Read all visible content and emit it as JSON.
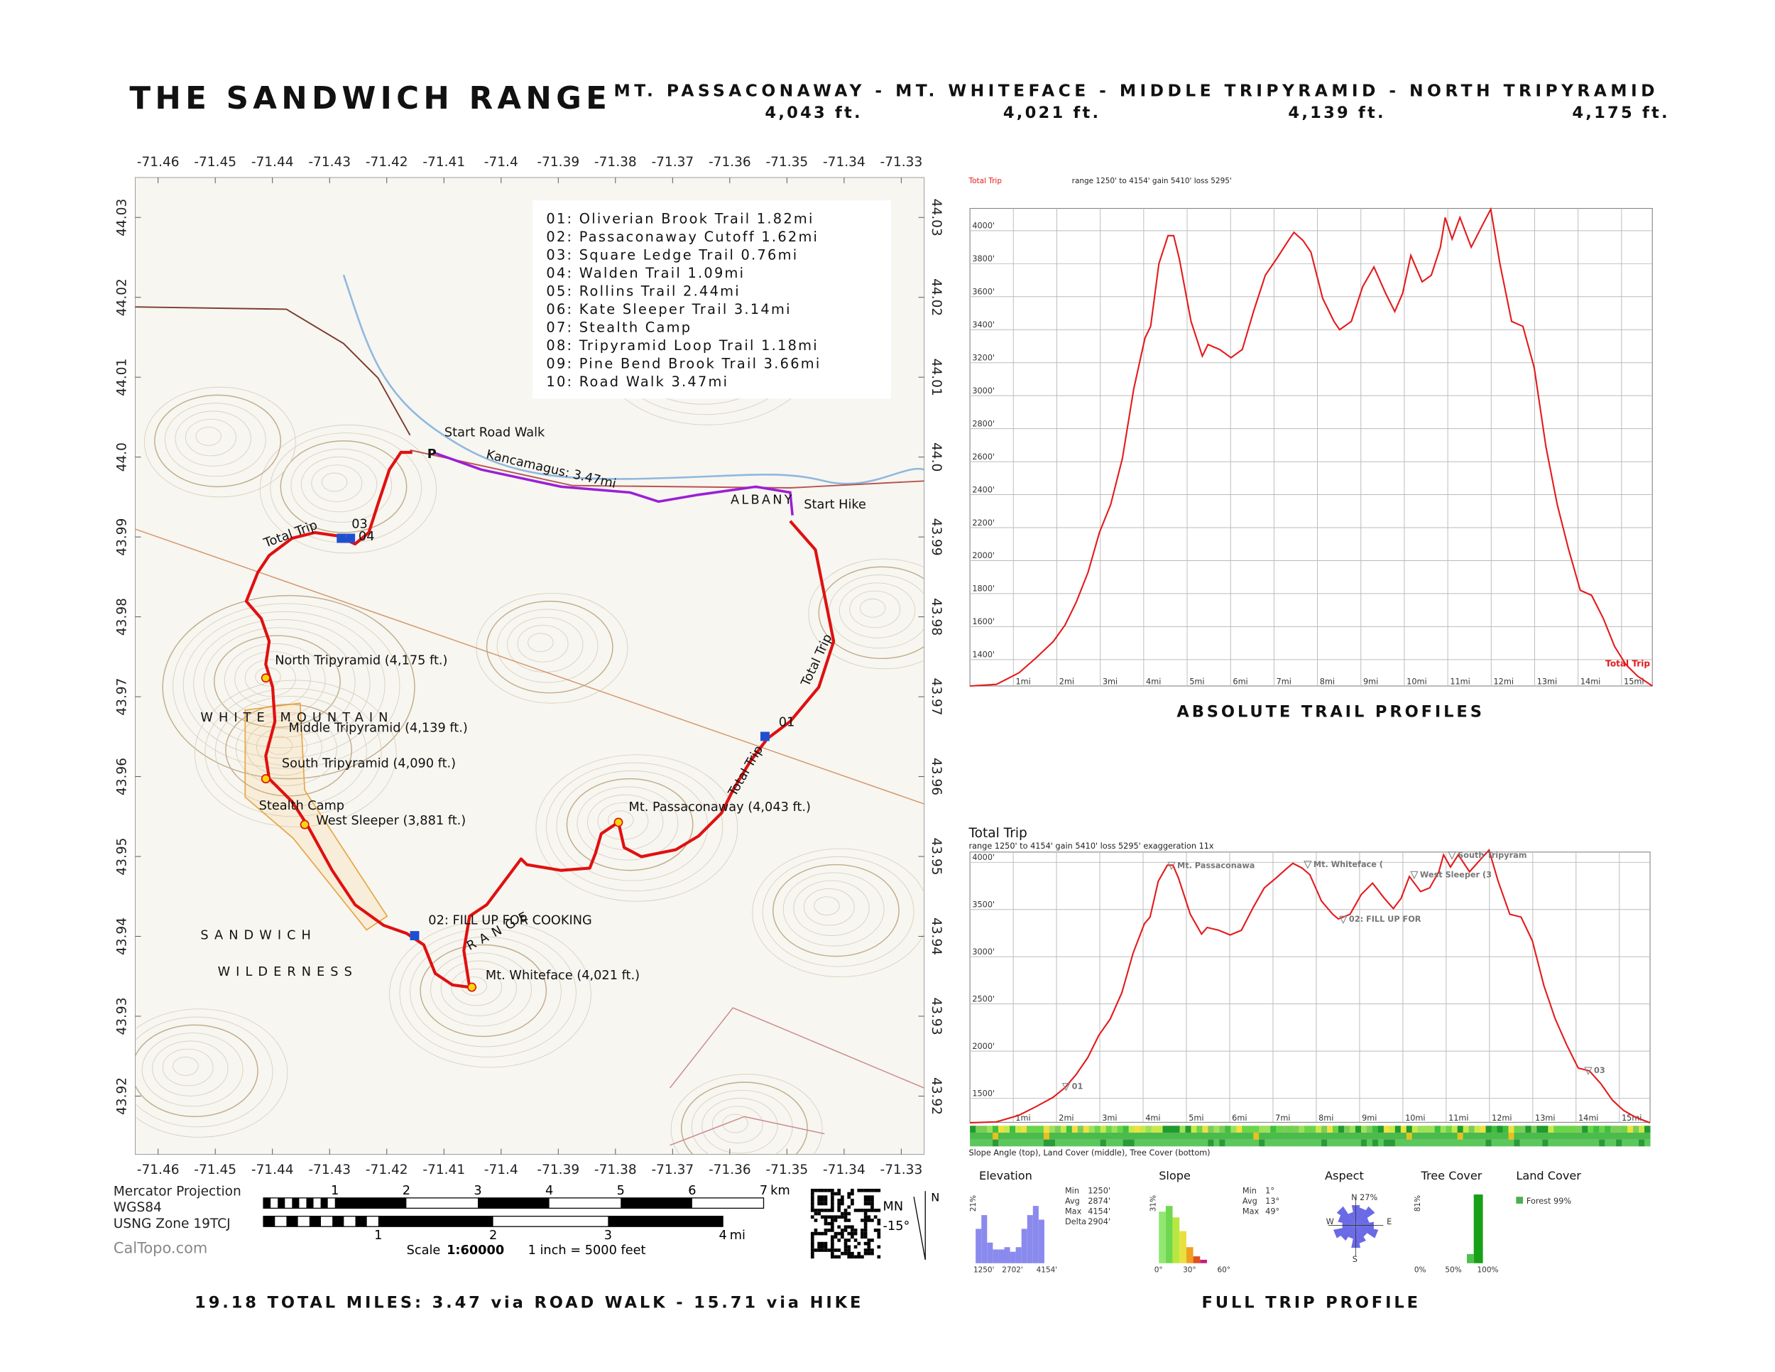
{
  "header": {
    "title": "THE SANDWICH RANGE",
    "peaks": "MT. PASSACONAWAY - MT. WHITEFACE - MIDDLE TRIPYRAMID - NORTH TRIPYRAMID",
    "elevations": [
      "4,043 ft.",
      "4,021 ft.",
      "4,139 ft.",
      "4,175 ft."
    ]
  },
  "map": {
    "lonlim": [
      -71.464,
      -71.326
    ],
    "latlim": [
      44.035,
      43.9127
    ],
    "lonticks": [
      -71.46,
      -71.45,
      -71.44,
      -71.43,
      -71.42,
      -71.41,
      -71.4,
      -71.39,
      -71.38,
      -71.37,
      -71.36,
      -71.35,
      -71.34,
      -71.33
    ],
    "latticks": [
      44.03,
      44.02,
      44.01,
      {
        "value": 44,
        "label": "44.0"
      },
      43.99,
      43.98,
      43.97,
      43.96,
      43.95,
      43.94,
      43.93,
      43.92
    ],
    "legend": [
      "01: Oliverian Brook Trail 1.82mi",
      "02: Passaconaway Cutoff 1.62mi",
      "03: Square Ledge Trail 0.76mi",
      "04: Walden Trail 1.09mi",
      "05: Rollins Trail 2.44mi",
      "06: Kate Sleeper Trail 3.14mi",
      "07: Stealth Camp",
      "08: Tripyramid Loop Trail 1.18mi",
      "09: Pine Bend Brook Trail 3.66mi",
      "10: Road Walk 3.47mi"
    ],
    "labels": {
      "start_road_walk": "Start Road Walk",
      "parking": "P",
      "kancamagus": "Kancamagus: 3.47mi",
      "start_hike": "Start Hike",
      "total_trip": "Total Trip",
      "north": "North Tripyramid (4,175 ft.)",
      "middle": "Middle Tripyramid (4,139 ft.)",
      "south": "South Tripyramid (4,090 ft.)",
      "stealth": "Stealth Camp",
      "west_sleeper": "West Sleeper (3,881 ft.)",
      "passaconaway": "Mt. Passaconaway (4,043 ft.)",
      "fill_up": "02: FILL UP FOR COOKING",
      "whiteface": "Mt. Whiteface (4,021 ft.)",
      "wp01": "01",
      "wp03": "03",
      "wp04": "04",
      "albany": "ALBANY",
      "white_mountain": "WHITE MOUNTAIN",
      "sandwich": "SANDWICH",
      "wilderness": "WILDERNESS",
      "range": "RANGE"
    },
    "projection": [
      "Mercator Projection",
      "WGS84",
      "USNG Zone 19TCJ"
    ],
    "credit": "CalTopo.com",
    "scale": {
      "km": [
        1,
        2,
        3,
        4,
        5,
        6,
        7
      ],
      "km_unit": "km",
      "mi": [
        1,
        2,
        3,
        4
      ],
      "mi_unit": "mi",
      "label": "Scale",
      "ratio": "1:60000",
      "inch": "1 inch = 5000 feet"
    },
    "north": {
      "mn": "MN",
      "declination": "-15°",
      "n": "N"
    }
  },
  "chart_data": [
    {
      "type": "line",
      "title": "Total Trip",
      "subtitle": "range 1250' to 4154'  gain 5410'  loss 5295'",
      "x": [
        0,
        0.61,
        1.13,
        1.52,
        1.92,
        2.19,
        2.45,
        2.72,
        2.98,
        3.24,
        3.51,
        3.77,
        4.03,
        4.16,
        4.35,
        4.56,
        4.69,
        4.82,
        5.09,
        5.35,
        5.48,
        5.75,
        6.01,
        6.27,
        6.54,
        6.8,
        7.06,
        7.33,
        7.46,
        7.67,
        7.85,
        8.12,
        8.38,
        8.51,
        8.78,
        9.04,
        9.3,
        9.57,
        9.78,
        9.96,
        10.15,
        10.41,
        10.62,
        10.83,
        10.94,
        11.1,
        11.28,
        11.54,
        11.81,
        11.99,
        12.2,
        12.47,
        12.73,
        12.99,
        13.26,
        13.52,
        13.78,
        14.05,
        14.31,
        14.58,
        14.84,
        15.1,
        15.37,
        15.71
      ],
      "series": [
        {
          "name": "Total Trip",
          "color": "#e41a1c",
          "values": [
            1240,
            1250,
            1320,
            1410,
            1510,
            1610,
            1750,
            1930,
            2170,
            2340,
            2620,
            3040,
            3350,
            3420,
            3800,
            3970,
            3970,
            3830,
            3450,
            3240,
            3310,
            3280,
            3230,
            3280,
            3520,
            3730,
            3830,
            3940,
            3990,
            3940,
            3870,
            3590,
            3450,
            3400,
            3450,
            3660,
            3780,
            3620,
            3510,
            3620,
            3850,
            3690,
            3730,
            3900,
            4080,
            3950,
            4080,
            3900,
            4040,
            4130,
            3800,
            3450,
            3420,
            3170,
            2690,
            2340,
            2070,
            1820,
            1790,
            1650,
            1480,
            1370,
            1300,
            1240
          ]
        }
      ],
      "xlim": [
        0,
        15.71
      ],
      "ylim": [
        1240,
        4135
      ],
      "xticks": [
        {
          "value": 1,
          "label": "1mi"
        },
        {
          "value": 2,
          "label": "2mi"
        },
        {
          "value": 3,
          "label": "3mi"
        },
        {
          "value": 4,
          "label": "4mi"
        },
        {
          "value": 5,
          "label": "5mi"
        },
        {
          "value": 6,
          "label": "6mi"
        },
        {
          "value": 7,
          "label": "7mi"
        },
        {
          "value": 8,
          "label": "8mi"
        },
        {
          "value": 9,
          "label": "9mi"
        },
        {
          "value": 10,
          "label": "10mi"
        },
        {
          "value": 11,
          "label": "11mi"
        },
        {
          "value": 12,
          "label": "12mi"
        },
        {
          "value": 13,
          "label": "13mi"
        },
        {
          "value": 14,
          "label": "14mi"
        },
        {
          "value": 15,
          "label": "15mi"
        }
      ],
      "yticks": [
        {
          "value": 1400,
          "label": "1400'"
        },
        {
          "value": 1600,
          "label": "1600'"
        },
        {
          "value": 1800,
          "label": "1800'"
        },
        {
          "value": 2000,
          "label": "2000'"
        },
        {
          "value": 2200,
          "label": "2200'"
        },
        {
          "value": 2400,
          "label": "2400'"
        },
        {
          "value": 2600,
          "label": "2600'"
        },
        {
          "value": 2800,
          "label": "2800'"
        },
        {
          "value": 3000,
          "label": "3000'"
        },
        {
          "value": 3200,
          "label": "3200'"
        },
        {
          "value": 3400,
          "label": "3400'"
        },
        {
          "value": 3600,
          "label": "3600'"
        },
        {
          "value": 3800,
          "label": "3800'"
        },
        {
          "value": 4000,
          "label": "4000'"
        }
      ],
      "grid": true,
      "legend": "lower right",
      "caption": "ABSOLUTE TRAIL PROFILES"
    },
    {
      "type": "line",
      "title": "Total Trip",
      "subtitle": "range 1250' to 4154'  gain 5410'  loss 5295'  exaggeration 11x",
      "x": [
        0,
        0.61,
        1.13,
        1.52,
        1.92,
        2.19,
        2.45,
        2.72,
        2.98,
        3.24,
        3.51,
        3.77,
        4.03,
        4.16,
        4.35,
        4.56,
        4.69,
        4.82,
        5.09,
        5.35,
        5.48,
        5.75,
        6.01,
        6.27,
        6.54,
        6.8,
        7.06,
        7.33,
        7.46,
        7.67,
        7.85,
        8.12,
        8.38,
        8.51,
        8.78,
        9.04,
        9.3,
        9.57,
        9.78,
        9.96,
        10.15,
        10.41,
        10.62,
        10.83,
        10.94,
        11.1,
        11.28,
        11.54,
        11.81,
        11.99,
        12.2,
        12.47,
        12.73,
        12.99,
        13.26,
        13.52,
        13.78,
        14.05,
        14.31,
        14.58,
        14.84,
        15.1,
        15.37,
        15.71
      ],
      "values": [
        1240,
        1250,
        1320,
        1410,
        1510,
        1610,
        1750,
        1930,
        2170,
        2340,
        2620,
        3040,
        3350,
        3420,
        3800,
        3970,
        3970,
        3830,
        3450,
        3240,
        3310,
        3280,
        3230,
        3280,
        3520,
        3730,
        3830,
        3940,
        3990,
        3940,
        3870,
        3590,
        3450,
        3400,
        3450,
        3660,
        3780,
        3620,
        3510,
        3620,
        3850,
        3690,
        3730,
        3900,
        4080,
        3950,
        4080,
        3900,
        4040,
        4130,
        3800,
        3450,
        3420,
        3170,
        2690,
        2340,
        2070,
        1820,
        1790,
        1650,
        1480,
        1370,
        1300,
        1240
      ],
      "color": "#e41a1c",
      "xlim": [
        0,
        15.71
      ],
      "ylim": [
        1245,
        4109
      ],
      "xticks": [
        {
          "value": 1,
          "label": "1mi"
        },
        {
          "value": 2,
          "label": "2mi"
        },
        {
          "value": 3,
          "label": "3mi"
        },
        {
          "value": 4,
          "label": "4mi"
        },
        {
          "value": 5,
          "label": "5mi"
        },
        {
          "value": 6,
          "label": "6mi"
        },
        {
          "value": 7,
          "label": "7mi"
        },
        {
          "value": 8,
          "label": "8mi"
        },
        {
          "value": 9,
          "label": "9mi"
        },
        {
          "value": 10,
          "label": "10mi"
        },
        {
          "value": 11,
          "label": "11mi"
        },
        {
          "value": 12,
          "label": "12mi"
        },
        {
          "value": 13,
          "label": "13mi"
        },
        {
          "value": 14,
          "label": "14mi"
        },
        {
          "value": 15,
          "label": "15mi"
        }
      ],
      "yticks": [
        {
          "value": 1500,
          "label": "1500'"
        },
        {
          "value": 2000,
          "label": "2000'"
        },
        {
          "value": 2500,
          "label": "2500'"
        },
        {
          "value": 3000,
          "label": "3000'"
        },
        {
          "value": 3500,
          "label": "3500'"
        },
        {
          "value": 4000,
          "label": "4000'"
        }
      ],
      "grid": true,
      "annotations": [
        "Mt. Passaconawa",
        "Mt. Whiteface (",
        "West Sleeper (3",
        "South Tripyram",
        "02: FILL UP FOR",
        "01",
        "03"
      ],
      "caption": "Slope Angle (top), Land Cover (middle), Tree Cover (bottom)"
    }
  ],
  "stats": {
    "elevation": {
      "title": "Elevation",
      "pct": "21%",
      "axis": [
        "1250'",
        "2702'",
        "4154'"
      ],
      "rows": [
        [
          "Min",
          "1250'"
        ],
        [
          "Avg",
          "2874'"
        ],
        [
          "Max",
          "4154'"
        ],
        [
          "Delta",
          "2904'"
        ]
      ]
    },
    "slope": {
      "title": "Slope",
      "pct": "31%",
      "axis": [
        "0°",
        "30°",
        "60°"
      ],
      "rows": [
        [
          "Min",
          "1°"
        ],
        [
          "Avg",
          "13°"
        ],
        [
          "Max",
          "49°"
        ]
      ]
    },
    "aspect": {
      "title": "Aspect",
      "north": "N 27%",
      "west": "W",
      "east": "E",
      "south": "S"
    },
    "tree_cover": {
      "title": "Tree Cover",
      "pct": "81%",
      "axis": [
        "0%",
        "50%",
        "100%"
      ]
    },
    "land_cover": {
      "title": "Land Cover",
      "legend": "Forest 99%"
    }
  },
  "footer": {
    "total": "19.18 TOTAL MILES: 3.47 via ROAD WALK - 15.71 via HIKE",
    "full": "FULL TRIP PROFILE"
  }
}
